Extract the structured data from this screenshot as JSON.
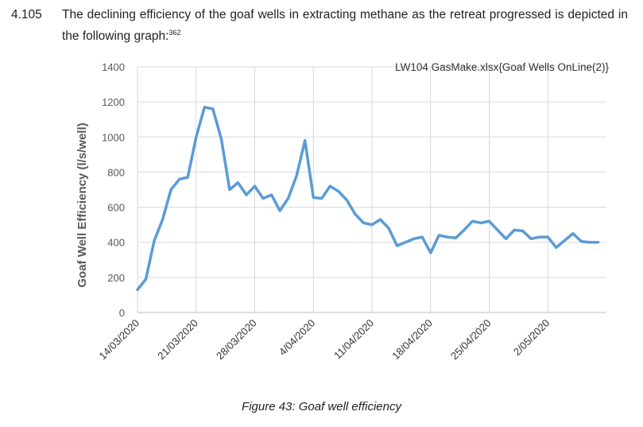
{
  "paragraph": {
    "number": "4.105",
    "text": "The declining efficiency of the goaf wells in extracting methane as the retreat progressed is depicted in the following graph:",
    "footnote": "362"
  },
  "caption": "Figure 43: Goaf well efficiency",
  "chart_data": {
    "type": "line",
    "title": "LW104 GasMake.xlsx{Goaf Wells OnLine(2)}",
    "xlabel": "",
    "ylabel": "Goaf Well Efficiency (l/s/well)",
    "ylim": [
      0,
      1400
    ],
    "yticks": [
      0,
      200,
      400,
      600,
      800,
      1000,
      1200,
      1400
    ],
    "xlim": [
      "2020-03-14",
      "2020-05-09"
    ],
    "xticks": [
      "14/03/2020",
      "21/03/2020",
      "28/03/2020",
      "4/04/2020",
      "11/04/2020",
      "18/04/2020",
      "25/04/2020",
      "2/05/2020"
    ],
    "grid": true,
    "color": "#5b9bd5",
    "series": [
      {
        "x": [
          "2020-03-14",
          "2020-03-15",
          "2020-03-16",
          "2020-03-17",
          "2020-03-18",
          "2020-03-19",
          "2020-03-20",
          "2020-03-21",
          "2020-03-22",
          "2020-03-23",
          "2020-03-24",
          "2020-03-25",
          "2020-03-26",
          "2020-03-27",
          "2020-03-28",
          "2020-03-29",
          "2020-03-30",
          "2020-03-31",
          "2020-04-01",
          "2020-04-02",
          "2020-04-03",
          "2020-04-04",
          "2020-04-05",
          "2020-04-06",
          "2020-04-07",
          "2020-04-08",
          "2020-04-09",
          "2020-04-10",
          "2020-04-11",
          "2020-04-12",
          "2020-04-13",
          "2020-04-14",
          "2020-04-15",
          "2020-04-16",
          "2020-04-17",
          "2020-04-18",
          "2020-04-19",
          "2020-04-20",
          "2020-04-21",
          "2020-04-22",
          "2020-04-23",
          "2020-04-24",
          "2020-04-25",
          "2020-04-26",
          "2020-04-27",
          "2020-04-28",
          "2020-04-29",
          "2020-04-30",
          "2020-05-01",
          "2020-05-02",
          "2020-05-03",
          "2020-05-04",
          "2020-05-05",
          "2020-05-06",
          "2020-05-07",
          "2020-05-08"
        ],
        "values": [
          130,
          190,
          410,
          530,
          700,
          760,
          770,
          1000,
          1170,
          1160,
          990,
          700,
          740,
          670,
          720,
          650,
          670,
          580,
          650,
          780,
          980,
          655,
          650,
          720,
          690,
          640,
          560,
          510,
          500,
          530,
          480,
          380,
          400,
          420,
          430,
          340,
          440,
          430,
          425,
          470,
          520,
          510,
          520,
          470,
          420,
          470,
          465,
          420,
          430,
          430,
          370,
          410,
          450,
          405,
          400,
          400
        ]
      }
    ]
  }
}
